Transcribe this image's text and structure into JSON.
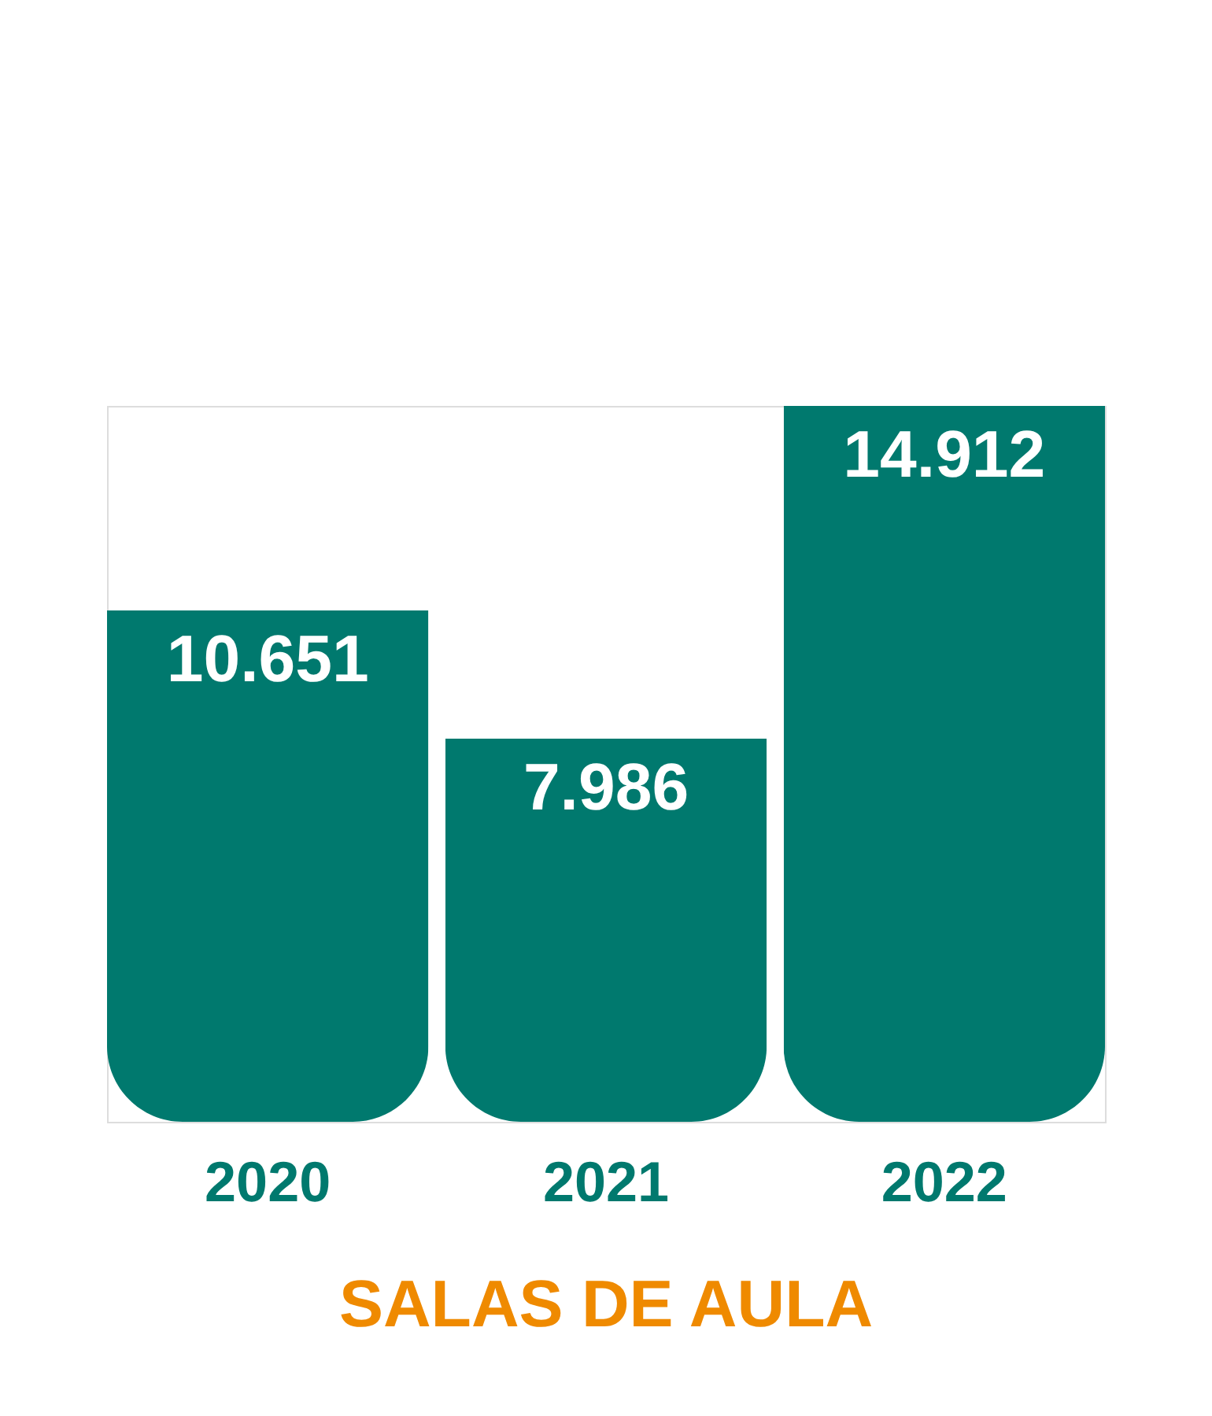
{
  "chart_data": {
    "type": "bar",
    "title": "SALAS DE AULA",
    "categories": [
      "2020",
      "2021",
      "2022"
    ],
    "values": [
      10651,
      7986,
      14912
    ],
    "value_labels": [
      "10.651",
      "7.986",
      "14.912"
    ],
    "color": "#00796e",
    "tick_labels": "x",
    "grid": false
  }
}
